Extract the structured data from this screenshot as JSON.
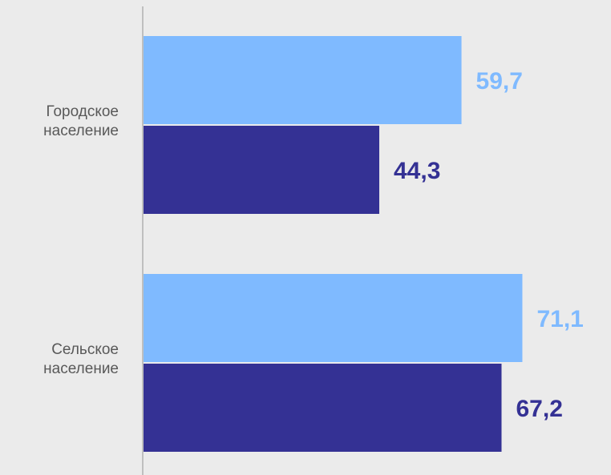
{
  "chart_data": {
    "type": "bar",
    "orientation": "horizontal",
    "categories": [
      [
        "Городское",
        "население"
      ],
      [
        "Сельское",
        "население"
      ]
    ],
    "series": [
      {
        "color": "#7fbaff",
        "values": [
          59.7,
          71.1
        ]
      },
      {
        "color": "#343194",
        "values": [
          44.3,
          67.2
        ]
      }
    ],
    "data_labels": [
      [
        "59,7",
        "44,3"
      ],
      [
        "71,1",
        "67,2"
      ]
    ],
    "xlim": [
      0,
      88
    ],
    "grid": false,
    "legend": "none"
  }
}
